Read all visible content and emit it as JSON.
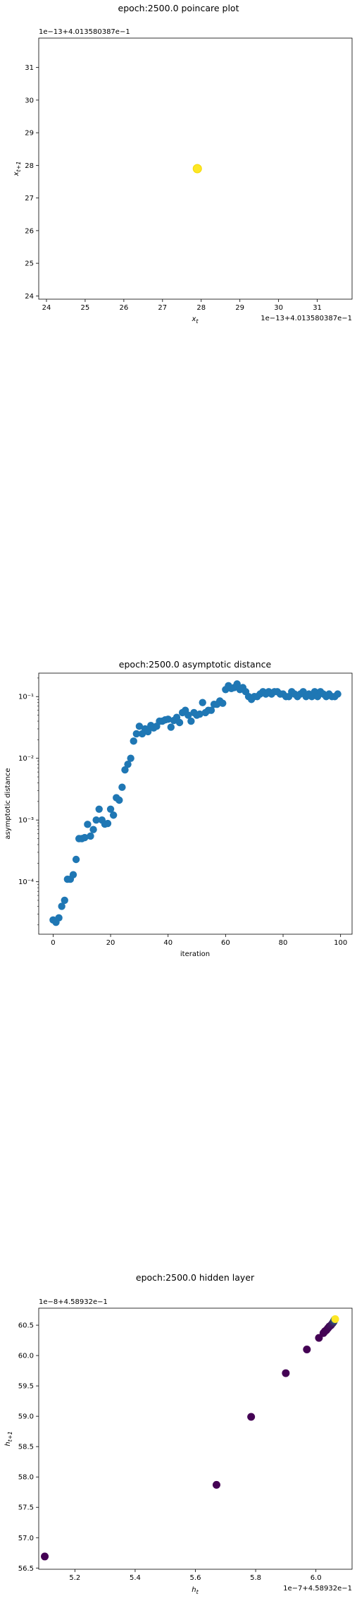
{
  "chart_data": [
    {
      "type": "scatter",
      "title": "epoch:2500.0 poincare plot",
      "xlabel": "x_t",
      "ylabel": "x_{t+1}",
      "x_offset_text": "1e−13+4.013580387e−1",
      "y_offset_text": "1e−13+4.013580387e−1",
      "xlim": [
        23.8,
        31.9
      ],
      "ylim": [
        23.9,
        31.9
      ],
      "xticks": [
        "24",
        "25",
        "26",
        "27",
        "28",
        "29",
        "30",
        "31"
      ],
      "yticks": [
        "24",
        "25",
        "26",
        "27",
        "28",
        "29",
        "30",
        "31"
      ],
      "grid": false,
      "points": [
        {
          "x": 27.9,
          "y": 27.9
        }
      ],
      "colors": {
        "point": "#fde725",
        "point_edge": "#f5d800"
      }
    },
    {
      "type": "scatter",
      "title": "epoch:2500.0 asymptotic distance",
      "xlabel": "iteration",
      "ylabel": "asymptotic distance",
      "xlim": [
        -5,
        104
      ],
      "ylim_log10": [
        -4.85,
        -0.62
      ],
      "y_scale": "log",
      "xticks": [
        "0",
        "20",
        "40",
        "60",
        "80",
        "100"
      ],
      "yticks": [
        "10⁻⁴",
        "10⁻³",
        "10⁻²",
        "10⁻¹"
      ],
      "grid": false,
      "colors": {
        "marker": "#1f77b4"
      },
      "x": [
        0,
        1,
        2,
        3,
        4,
        5,
        6,
        7,
        8,
        9,
        10,
        11,
        12,
        13,
        14,
        15,
        16,
        17,
        18,
        19,
        20,
        21,
        22,
        23,
        24,
        25,
        26,
        27,
        28,
        29,
        30,
        31,
        32,
        33,
        34,
        35,
        36,
        37,
        38,
        39,
        40,
        41,
        42,
        43,
        44,
        45,
        46,
        47,
        48,
        49,
        50,
        51,
        52,
        53,
        54,
        55,
        56,
        57,
        58,
        59,
        60,
        61,
        62,
        63,
        64,
        65,
        66,
        67,
        68,
        69,
        70,
        71,
        72,
        73,
        74,
        75,
        76,
        77,
        78,
        79,
        80,
        81,
        82,
        83,
        84,
        85,
        86,
        87,
        88,
        89,
        90,
        91,
        92,
        93,
        94,
        95,
        96,
        97,
        98,
        99
      ],
      "y": [
        2.4e-05,
        2.2e-05,
        2.6e-05,
        4e-05,
        5e-05,
        0.00011,
        0.00011,
        0.00013,
        0.00023,
        0.0005,
        0.0005,
        0.00052,
        0.00085,
        0.00055,
        0.0007,
        0.001,
        0.0015,
        0.001,
        0.00086,
        0.00088,
        0.0015,
        0.0012,
        0.0023,
        0.0021,
        0.0034,
        0.0065,
        0.008,
        0.01,
        0.019,
        0.025,
        0.033,
        0.025,
        0.03,
        0.027,
        0.034,
        0.031,
        0.033,
        0.04,
        0.04,
        0.042,
        0.043,
        0.032,
        0.041,
        0.046,
        0.038,
        0.055,
        0.06,
        0.05,
        0.04,
        0.055,
        0.05,
        0.052,
        0.08,
        0.055,
        0.06,
        0.06,
        0.075,
        0.075,
        0.085,
        0.078,
        0.13,
        0.15,
        0.135,
        0.14,
        0.16,
        0.13,
        0.14,
        0.12,
        0.1,
        0.09,
        0.1,
        0.1,
        0.11,
        0.12,
        0.11,
        0.12,
        0.11,
        0.12,
        0.12,
        0.11,
        0.11,
        0.1,
        0.1,
        0.12,
        0.11,
        0.1,
        0.11,
        0.12,
        0.1,
        0.11,
        0.1,
        0.12,
        0.1,
        0.12,
        0.11,
        0.1,
        0.11,
        0.1,
        0.1,
        0.11
      ]
    },
    {
      "type": "scatter",
      "title": "epoch:2500.0 hidden layer",
      "xlabel": "h_t",
      "ylabel": "h_{t+1}",
      "x_offset_text": "1e−7+4.58932e−1",
      "y_offset_text": "1e−8+4.58932e−1",
      "xlim": [
        5.08,
        6.12
      ],
      "ylim": [
        56.48,
        60.78
      ],
      "xticks": [
        "5.2",
        "5.4",
        "5.6",
        "5.8",
        "6.0"
      ],
      "yticks": [
        "56.5",
        "57.0",
        "57.5",
        "58.0",
        "58.5",
        "59.0",
        "59.5",
        "60.0",
        "60.5"
      ],
      "grid": false,
      "colors": {
        "start": "#440154",
        "middle": "#21918c",
        "end": "#fde725"
      },
      "x": [
        5.1,
        5.67,
        5.785,
        5.9,
        5.97,
        6.01,
        6.025,
        6.03,
        6.035,
        6.04,
        6.045,
        6.05,
        6.055,
        6.058,
        6.06,
        6.062,
        6.064
      ],
      "y": [
        56.69,
        57.87,
        58.99,
        59.71,
        60.1,
        60.29,
        60.37,
        60.4,
        60.42,
        60.45,
        60.48,
        60.5,
        60.53,
        60.55,
        60.57,
        60.59,
        60.6
      ]
    }
  ]
}
